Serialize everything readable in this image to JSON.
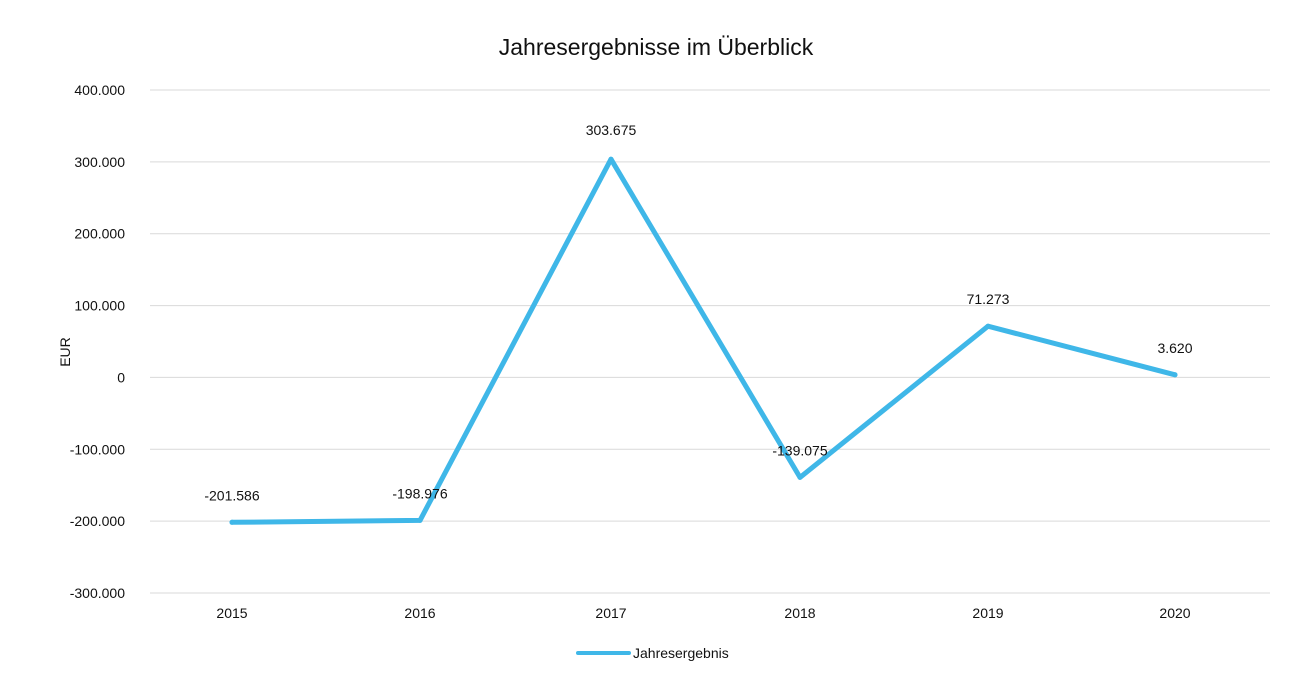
{
  "chart_data": {
    "type": "line",
    "title": "Jahresergebnisse im Überblick",
    "xlabel": "",
    "ylabel": "EUR",
    "categories": [
      "2015",
      "2016",
      "2017",
      "2018",
      "2019",
      "2020"
    ],
    "series": [
      {
        "name": "Jahresergebnis",
        "values": [
          -201586,
          -198976,
          303675,
          -139075,
          71273,
          3620
        ],
        "labels": [
          "-201.586",
          "-198.976",
          "303.675",
          "-139.075",
          "71.273",
          "3.620"
        ],
        "color": "#3fb7e8"
      }
    ],
    "y_ticks": [
      {
        "value": 400000,
        "label": "400.000"
      },
      {
        "value": 300000,
        "label": "300.000"
      },
      {
        "value": 200000,
        "label": "200.000"
      },
      {
        "value": 100000,
        "label": "100.000"
      },
      {
        "value": 0,
        "label": "0"
      },
      {
        "value": -100000,
        "label": "-100.000"
      },
      {
        "value": -200000,
        "label": "-200.000"
      },
      {
        "value": -300000,
        "label": "-300.000"
      }
    ],
    "ylim": [
      -300000,
      400000
    ],
    "grid": true,
    "legend_position": "bottom"
  }
}
